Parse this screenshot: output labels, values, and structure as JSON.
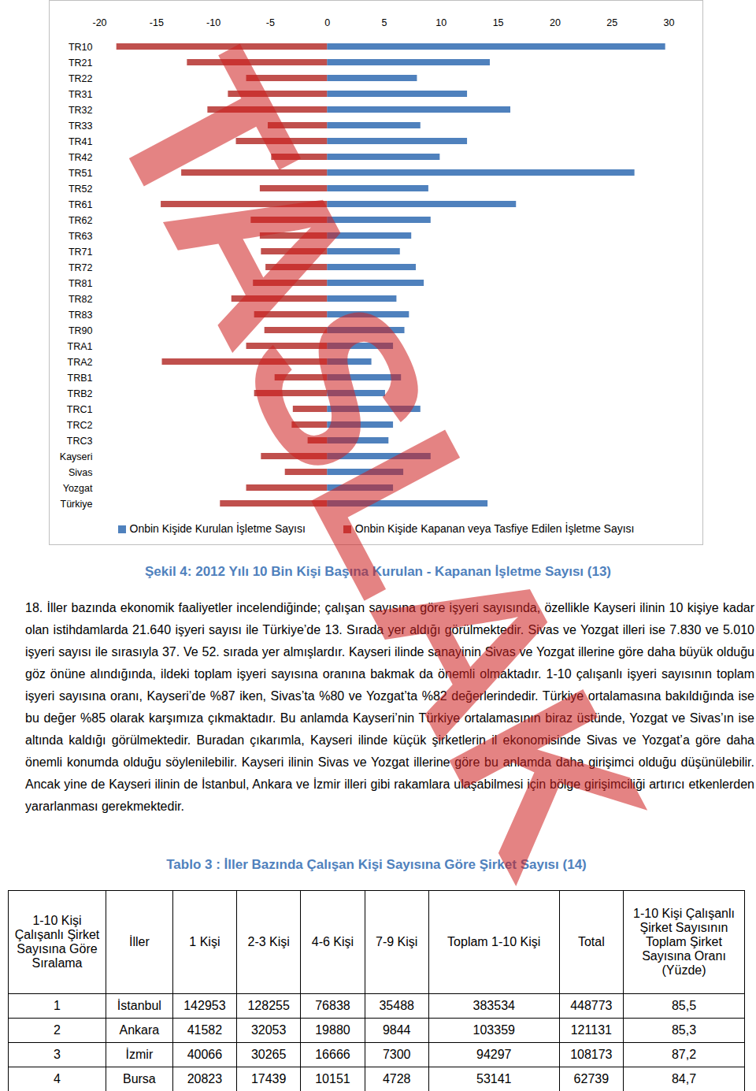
{
  "watermark": "TASLAK",
  "chart_data": {
    "type": "bar",
    "orientation": "horizontal",
    "categories": [
      "TR10",
      "TR21",
      "TR22",
      "TR31",
      "TR32",
      "TR33",
      "TR41",
      "TR42",
      "TR51",
      "TR52",
      "TR61",
      "TR62",
      "TR63",
      "TR71",
      "TR72",
      "TR81",
      "TR82",
      "TR83",
      "TR90",
      "TRA1",
      "TRA2",
      "TRB1",
      "TRB2",
      "TRC1",
      "TRC2",
      "TRC3",
      "Kayseri",
      "Sivas",
      "Yozgat",
      "Türkiye"
    ],
    "series": [
      {
        "name": "Onbin Kişide Kurulan İşletme Sayısı",
        "color": "#4f81bd",
        "values": [
          29.7,
          14.3,
          7.9,
          12.3,
          16.1,
          8.2,
          12.3,
          9.9,
          27.0,
          8.9,
          16.6,
          9.1,
          7.4,
          6.4,
          7.8,
          8.5,
          6.1,
          7.2,
          6.8,
          5.8,
          3.9,
          6.5,
          5.1,
          8.2,
          5.8,
          5.4,
          9.1,
          6.7,
          5.8,
          14.1
        ]
      },
      {
        "name": "Onbin Kişide Kapanan veya Tasfiye Edilen İşletme Sayısı",
        "color": "#c0504d",
        "values": [
          -18.5,
          -12.3,
          -7.1,
          -8.7,
          -10.5,
          -5.2,
          -8.0,
          -4.9,
          -12.8,
          -5.9,
          -14.6,
          -6.7,
          -5.9,
          -5.8,
          -5.4,
          -6.5,
          -8.4,
          -6.4,
          -5.5,
          -7.1,
          -14.5,
          -4.6,
          -6.4,
          -3.0,
          -3.1,
          -1.7,
          -5.8,
          -3.7,
          -7.1,
          -9.4
        ]
      }
    ],
    "xlim": [
      -20,
      30
    ],
    "xticks": [
      -20,
      -15,
      -10,
      -5,
      0,
      5,
      10,
      15,
      20,
      25,
      30
    ],
    "legend": "bottom"
  },
  "caption": "Şekil 4: 2012 Yılı 10 Bin Kişi Başına Kurulan - Kapanan İşletme Sayısı (13)",
  "paragraph": "18. İller bazında ekonomik faaliyetler incelendiğinde; çalışan sayısına göre işyeri sayısında, özellikle Kayseri ilinin 10 kişiye kadar olan istihdamlarda 21.640 işyeri sayısı ile Türkiye’de 13. Sırada yer aldığı görülmektedir. Sivas ve Yozgat illeri ise 7.830 ve 5.010 işyeri sayısı ile sırasıyla 37. Ve 52. sırada yer almışlardır. Kayseri ilinde sanayinin Sivas ve Yozgat illerine göre daha büyük olduğu göz önüne alındığında, ildeki toplam işyeri sayısına oranına bakmak da önemli olmaktadır. 1-10 çalışanlı işyeri sayısının toplam işyeri sayısına oranı, Kayseri’de %87 iken, Sivas’ta %80 ve Yozgat’ta %82 değerlerindedir. Türkiye ortalamasına bakıldığında ise bu değer %85 olarak karşımıza çıkmaktadır. Bu anlamda Kayseri’nin Türkiye ortalamasının biraz üstünde, Yozgat ve Sivas’ın ise altında kaldığı görülmektedir. Buradan çıkarımla, Kayseri ilinde küçük şirketlerin il ekonomisinde Sivas ve Yozgat’a göre daha önemli konumda olduğu söylenilebilir. Kayseri ilinin Sivas ve Yozgat illerine göre bu anlamda daha girişimci olduğu düşünülebilir. Ancak yine de Kayseri ilinin de İstanbul, Ankara ve İzmir illeri gibi rakamlara ulaşabilmesi için bölge girişimciliği artırıcı etkenlerden yararlanması gerekmektedir.",
  "table": {
    "title": "Tablo 3 : İller Bazında Çalışan Kişi Sayısına Göre Şirket Sayısı (14)",
    "header": [
      "1-10 Kişi Çalışanlı Şirket Sayısına Göre Sıralama",
      "İller",
      "1 Kişi",
      "2-3 Kişi",
      "4-6 Kişi",
      "7-9 Kişi",
      "Toplam 1-10 Kişi",
      "Total",
      "1-10 Kişi Çalışanlı Şirket Sayısının Toplam Şirket Sayısına Oranı (Yüzde)"
    ],
    "rows": [
      [
        "1",
        "İstanbul",
        "142953",
        "128255",
        "76838",
        "35488",
        "383534",
        "448773",
        "85,5"
      ],
      [
        "2",
        "Ankara",
        "41582",
        "32053",
        "19880",
        "9844",
        "103359",
        "121131",
        "85,3"
      ],
      [
        "3",
        "İzmir",
        "40066",
        "30265",
        "16666",
        "7300",
        "94297",
        "108173",
        "87,2"
      ],
      [
        "4",
        "Bursa",
        "20823",
        "17439",
        "10151",
        "4728",
        "53141",
        "62739",
        "84,7"
      ]
    ]
  }
}
